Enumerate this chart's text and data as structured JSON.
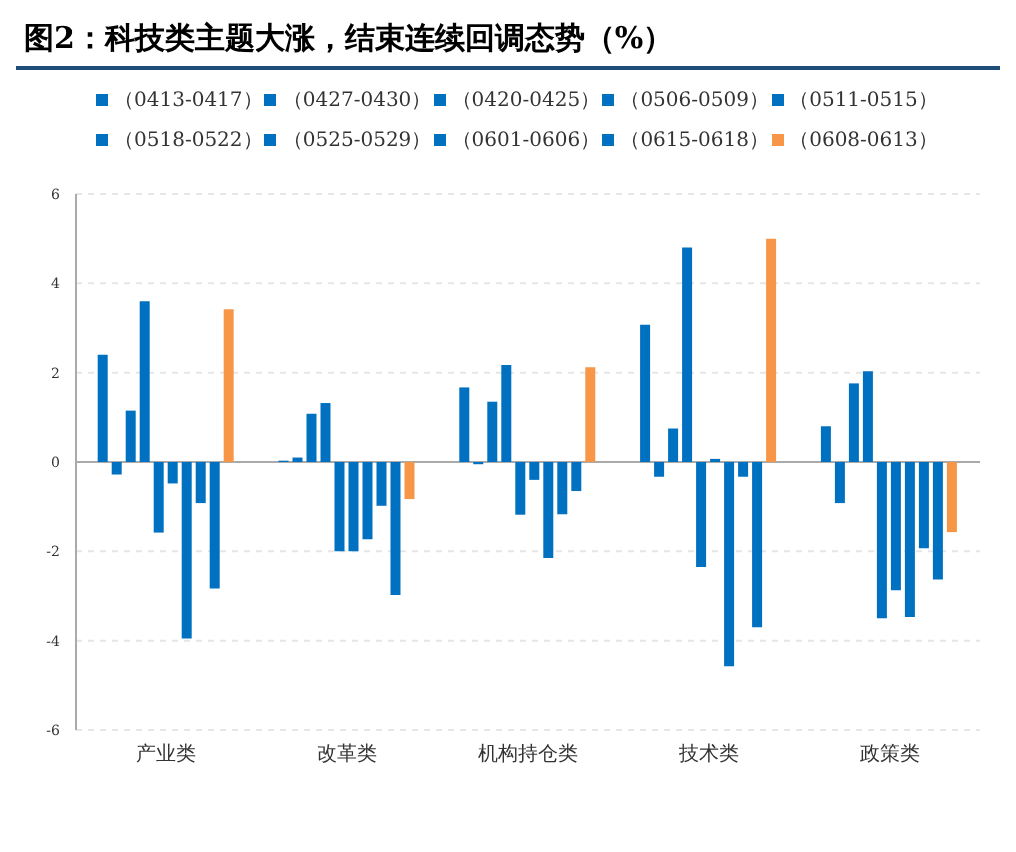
{
  "chart_data": {
    "type": "bar",
    "title": "图2：科技类主题大涨，结束连续回调态势（%）",
    "categories": [
      "产业类",
      "改革类",
      "机构持仓类",
      "技术类",
      "政策类"
    ],
    "series": [
      {
        "name": "（0413-0417）",
        "color": "#0070c0",
        "values": [
          2.4,
          0.03,
          1.67,
          3.07,
          0.8
        ]
      },
      {
        "name": "（0427-0430）",
        "color": "#0070c0",
        "values": [
          -0.28,
          0.1,
          -0.05,
          -0.33,
          -0.92
        ]
      },
      {
        "name": "（0420-0425）",
        "color": "#0070c0",
        "values": [
          1.15,
          1.08,
          1.35,
          0.75,
          1.76
        ]
      },
      {
        "name": "（0506-0509）",
        "color": "#0070c0",
        "values": [
          3.6,
          1.32,
          2.17,
          4.8,
          2.03
        ]
      },
      {
        "name": "（0511-0515）",
        "color": "#0070c0",
        "values": [
          -1.58,
          -2.0,
          -1.18,
          -2.35,
          -3.5
        ]
      },
      {
        "name": "（0518-0522）",
        "color": "#0070c0",
        "values": [
          -0.48,
          -2.0,
          -0.4,
          0.07,
          -2.87
        ]
      },
      {
        "name": "（0525-0529）",
        "color": "#0070c0",
        "values": [
          -3.95,
          -1.73,
          -2.15,
          -4.57,
          -3.47
        ]
      },
      {
        "name": "（0601-0606）",
        "color": "#0070c0",
        "values": [
          -0.92,
          -0.98,
          -1.17,
          -0.33,
          -1.93
        ]
      },
      {
        "name": "（0615-0618）",
        "color": "#0070c0",
        "values": [
          -2.83,
          -2.98,
          -0.65,
          -3.7,
          -2.63
        ]
      },
      {
        "name": "（0608-0613）",
        "color": "#f79646",
        "values": [
          3.42,
          -0.83,
          2.12,
          5.0,
          -1.57
        ]
      }
    ],
    "ylim": [
      -6,
      6
    ],
    "yticks": [
      -6,
      -4,
      -2,
      0,
      2,
      4,
      6
    ],
    "grid": "y",
    "legend": "top"
  }
}
